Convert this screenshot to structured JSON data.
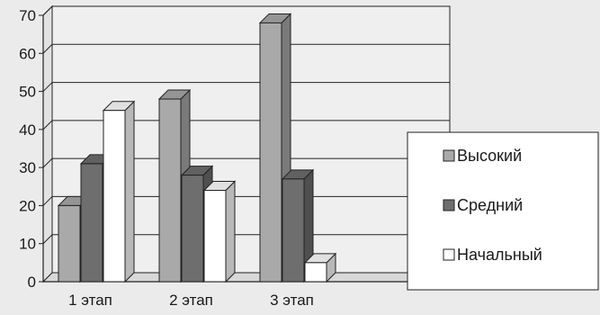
{
  "chart_data": {
    "type": "bar",
    "categories": [
      "1 этап",
      "2 этап",
      "3 этап"
    ],
    "series": [
      {
        "name": "Высокий",
        "values": [
          20,
          48,
          68
        ],
        "color": "#a9a9a9"
      },
      {
        "name": "Средний",
        "values": [
          31,
          28,
          27
        ],
        "color": "#6e6e6e"
      },
      {
        "name": "Начальный",
        "values": [
          45,
          24,
          5
        ],
        "color": "#ffffff"
      }
    ],
    "title": "",
    "xlabel": "",
    "ylabel": "",
    "ylim": [
      0,
      70
    ],
    "yticks": [
      0,
      10,
      20,
      30,
      40,
      50,
      60,
      70
    ],
    "grid": true,
    "legend_position": "right",
    "style": "3d-clustered-column"
  }
}
